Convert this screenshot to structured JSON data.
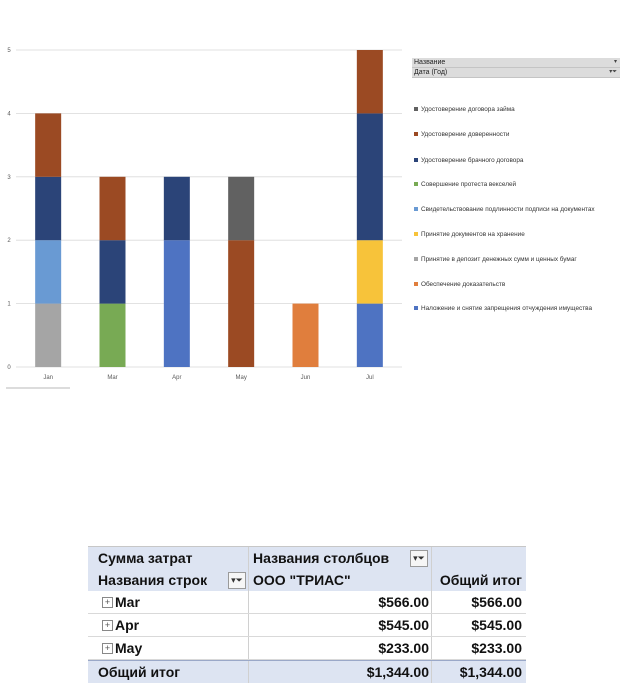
{
  "chart_data": {
    "type": "bar",
    "stacked": true,
    "categories": [
      "Jan",
      "Mar",
      "Apr",
      "May",
      "Jun",
      "Jul"
    ],
    "ylim": [
      0,
      5
    ],
    "yticks": [
      "0",
      "1",
      "2",
      "3",
      "4",
      "5"
    ],
    "grid": true,
    "legend_position": "right",
    "legend_header_field": "Название",
    "legend_header_date": "Дата (Год)",
    "series": [
      {
        "name": "Удостоверение договора займа",
        "color": "#616161",
        "values": [
          0,
          0,
          0,
          1,
          0,
          0
        ]
      },
      {
        "name": "Удостоверение доверенности",
        "color": "#9b4a23",
        "values": [
          1,
          1,
          0,
          2,
          0,
          1
        ]
      },
      {
        "name": "Удостоверение брачного договора",
        "color": "#2b4478",
        "values": [
          1,
          1,
          1,
          0,
          0,
          2
        ]
      },
      {
        "name": "Совершение протеста векселей",
        "color": "#78aa54",
        "values": [
          0,
          1,
          0,
          0,
          0,
          0
        ]
      },
      {
        "name": "Свидетельствование подлинности подписи на документах",
        "color": "#699ad3",
        "values": [
          1,
          0,
          0,
          0,
          0,
          0
        ]
      },
      {
        "name": "Принятие документов на хранение",
        "color": "#f7c33a",
        "values": [
          0,
          0,
          0,
          0,
          0,
          1
        ]
      },
      {
        "name": "Принятие в депозит денежных сумм и ценных бумаг",
        "color": "#a5a5a5",
        "values": [
          1,
          0,
          0,
          0,
          0,
          0
        ]
      },
      {
        "name": "Обеспечение доказательств",
        "color": "#e07e3d",
        "values": [
          0,
          0,
          0,
          0,
          1,
          0
        ]
      },
      {
        "name": "Наложение и снятие запрещения отчуждения имущества",
        "color": "#4e73c2",
        "values": [
          0,
          0,
          2,
          0,
          0,
          1
        ]
      }
    ]
  },
  "legend_order": [
    1,
    1,
    2,
    3,
    4,
    5,
    6,
    7,
    8
  ],
  "pivot": {
    "header1_col1": "Сумма затрат",
    "header1_col2": "Названия столбцов",
    "header2_col1": "Названия строк",
    "header2_col2": "ООО \"ТРИАС\"",
    "header2_col3": "Общий итог",
    "rows": [
      {
        "label": "Mar",
        "value": "$566.00",
        "total": "$566.00"
      },
      {
        "label": "Apr",
        "value": "$545.00",
        "total": "$545.00"
      },
      {
        "label": "May",
        "value": "$233.00",
        "total": "$233.00"
      }
    ],
    "grand_label": "Общий итог",
    "grand_value": "$1,344.00",
    "grand_total": "$1,344.00",
    "filter_icon": "filter-icon",
    "expand_icon": "plus-box-icon",
    "dropdown_icon": "dropdown-arrow-icon"
  }
}
